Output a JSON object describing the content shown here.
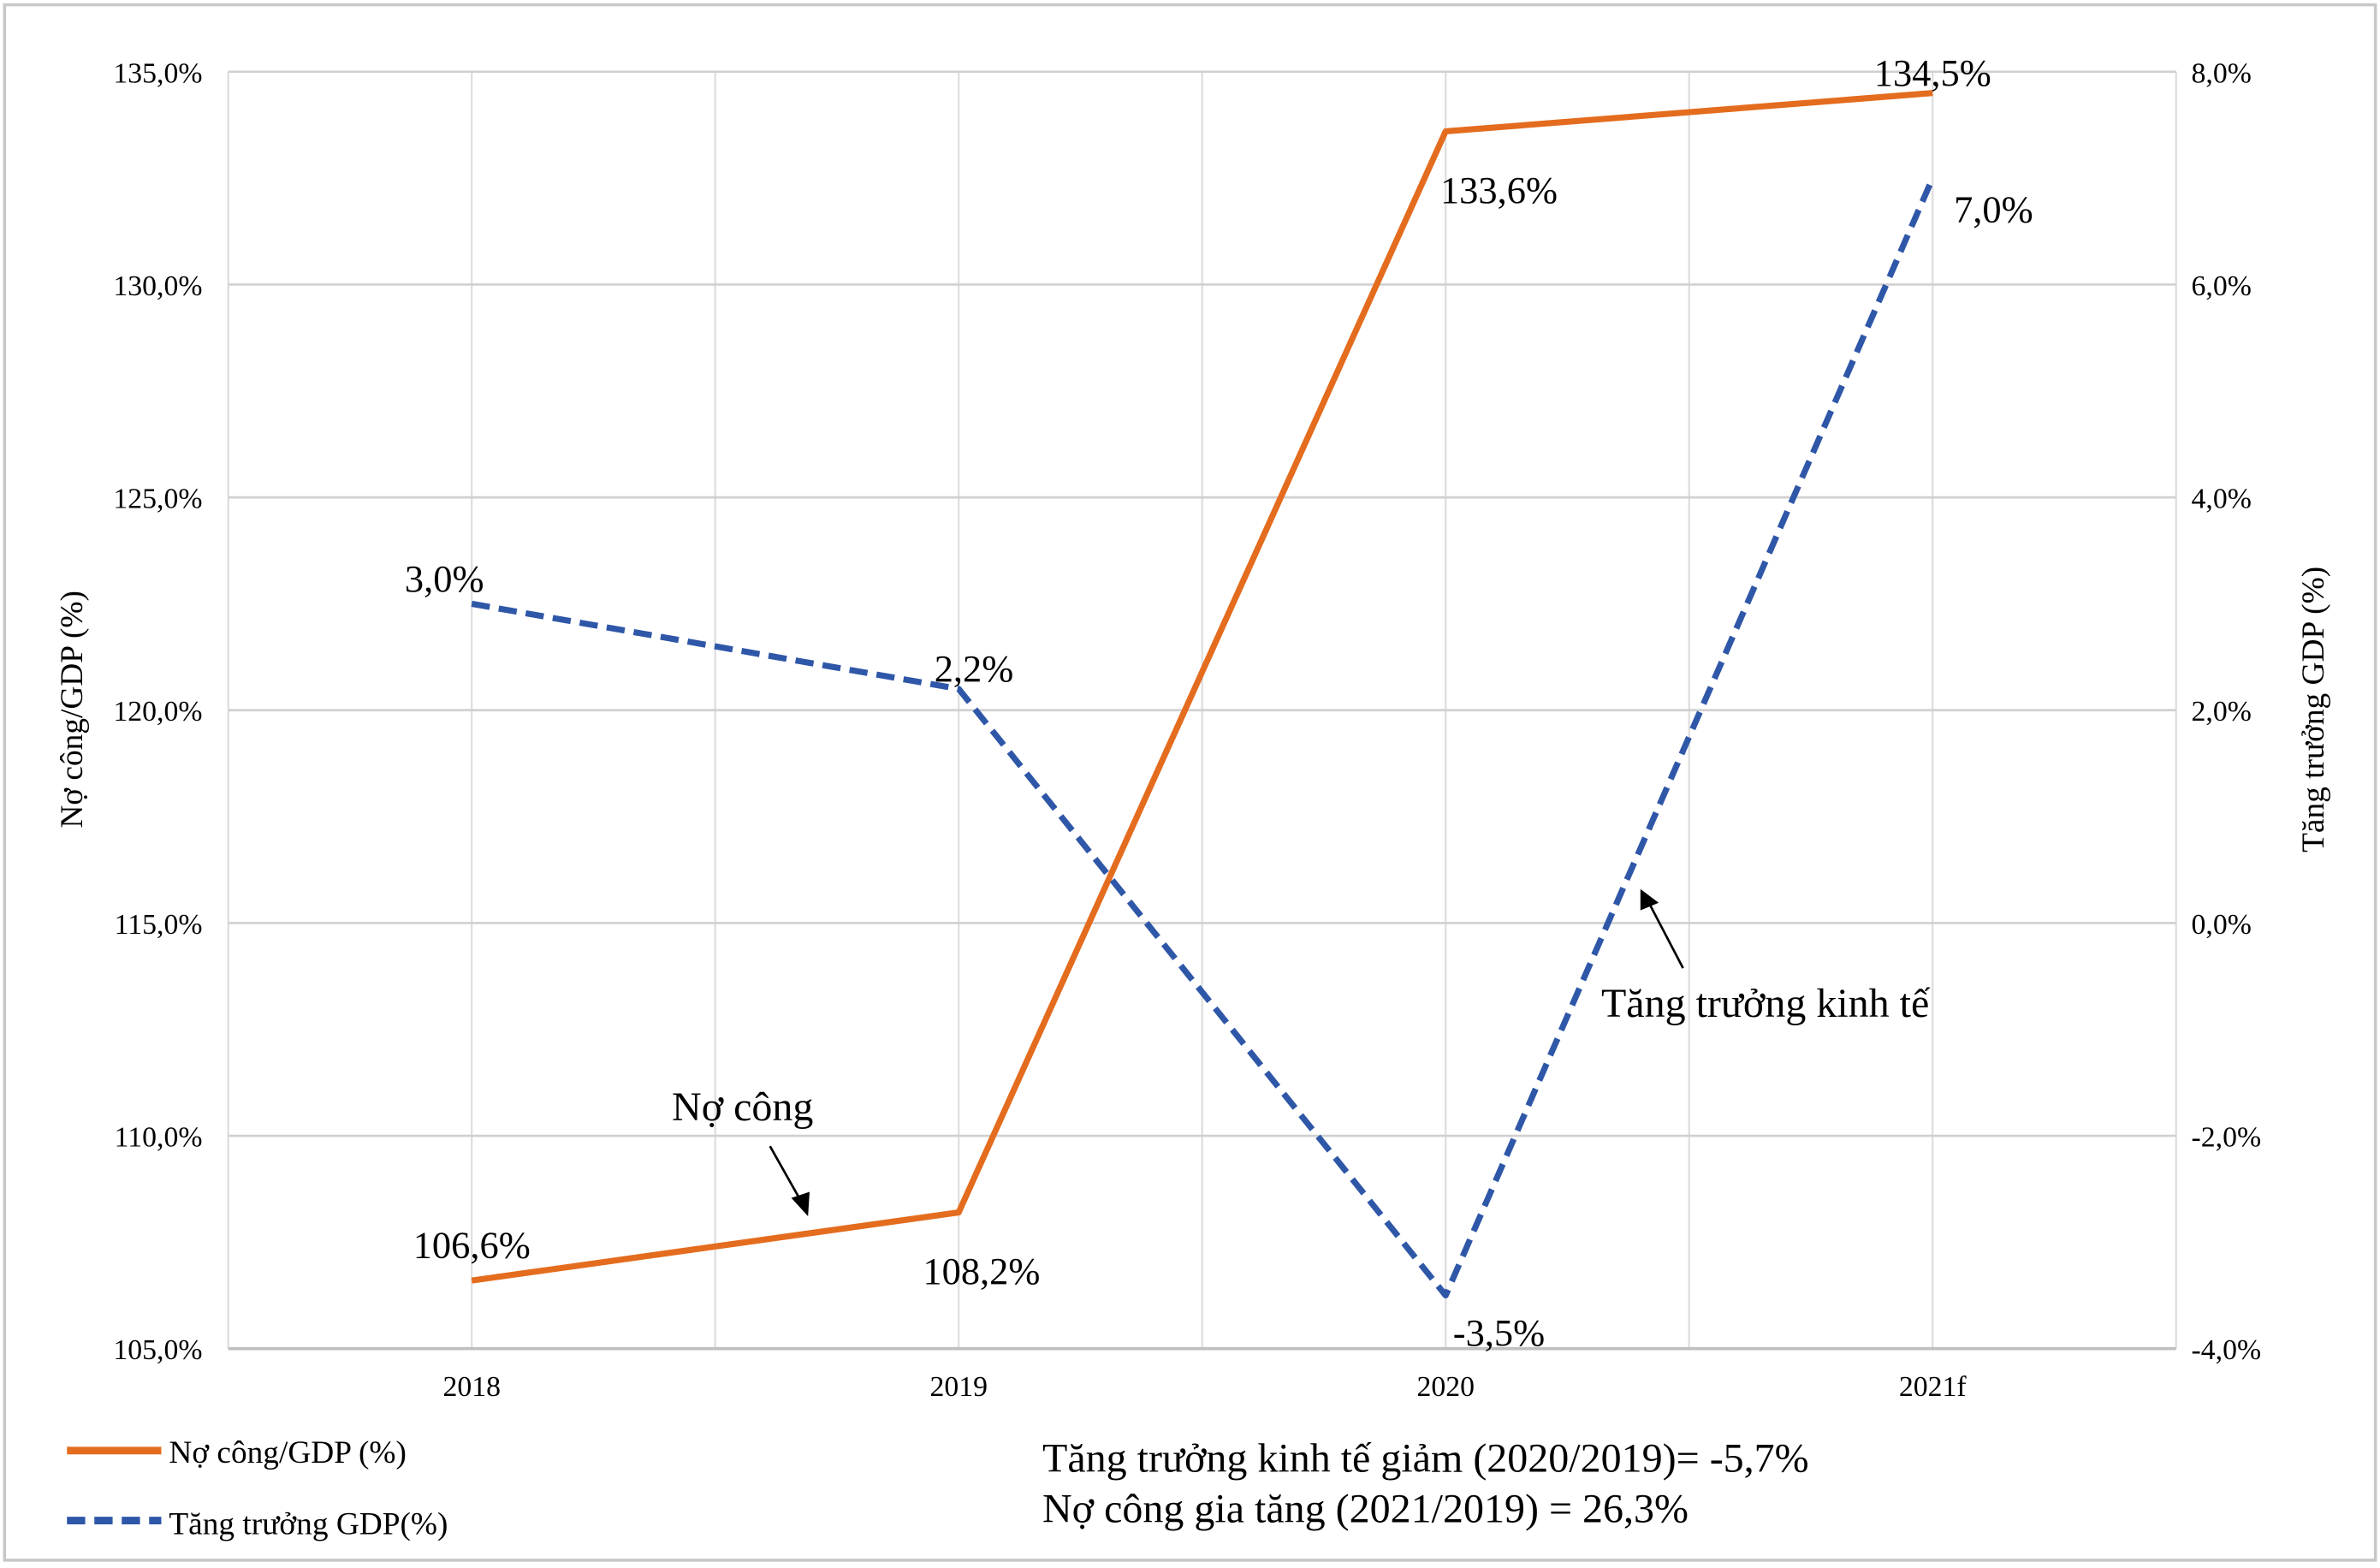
{
  "chart_data": {
    "type": "line",
    "categories": [
      "2018",
      "2019",
      "2020",
      "2021f"
    ],
    "series": [
      {
        "name": "Nợ công/GDP (%)",
        "axis": "left",
        "values": [
          106.6,
          108.2,
          133.6,
          134.5
        ],
        "labels": [
          "106,6%",
          "108,2%",
          "133,6%",
          "134,5%"
        ],
        "color": "#E46C1E",
        "style": "solid"
      },
      {
        "name": "Tăng trưởng GDP(%)",
        "axis": "right",
        "values": [
          3.0,
          2.2,
          -3.5,
          7.0
        ],
        "labels": [
          "3,0%",
          "2,2%",
          "-3,5%",
          "7,0%"
        ],
        "color": "#2F57A8",
        "style": "dashed"
      }
    ],
    "ylabel": "Nợ công/GDP (%)",
    "ylabel_right": "Tăng trưởng GDP (%)",
    "ylim": [
      105,
      135
    ],
    "ylim_right": [
      -4,
      8
    ],
    "yticks": [
      "105,0%",
      "110,0%",
      "115,0%",
      "120,0%",
      "125,0%",
      "130,0%",
      "135,0%"
    ],
    "yticks_right": [
      "-4,0%",
      "-2,0%",
      "0,0%",
      "2,0%",
      "4,0%",
      "6,0%",
      "8,0%"
    ],
    "grid": true,
    "legend": "bottom-left",
    "annotations": {
      "debt": "Nợ công",
      "growth": "Tăng trưởng kinh tế",
      "note1": "Tăng trưởng kinh tế giảm (2020/2019)= -5,7%",
      "note2": "Nợ công gia tăng (2021/2019) = 26,3%"
    }
  }
}
